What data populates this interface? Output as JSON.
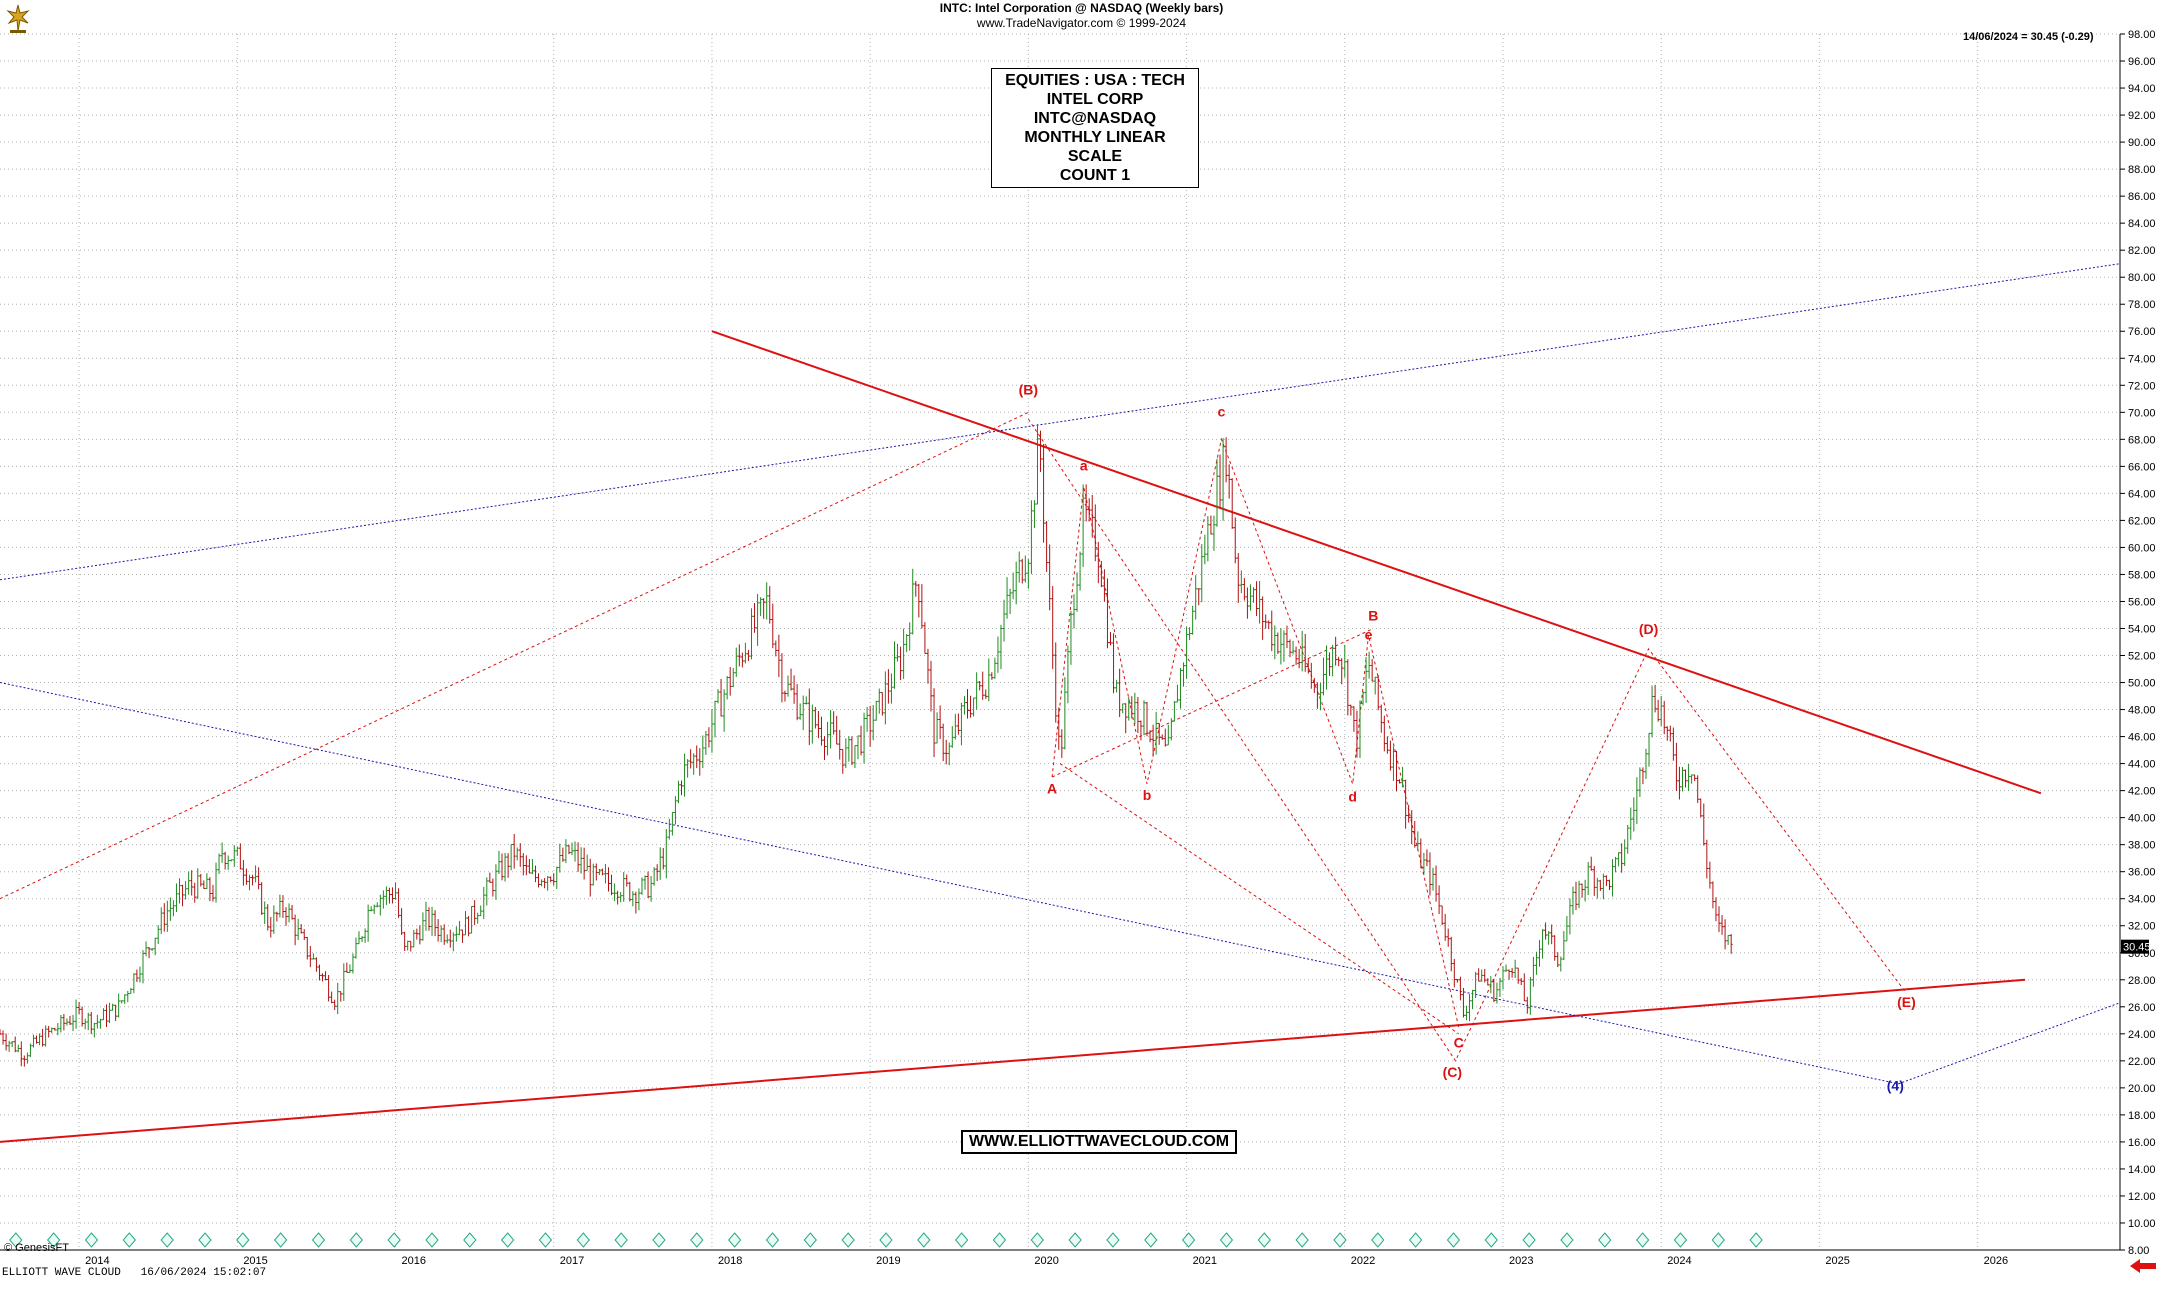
{
  "header": {
    "line1": "INTC:  Intel Corporation @ NASDAQ  (Weekly bars)",
    "line2": "www.TradeNavigator.com © 1999-2024"
  },
  "quote": {
    "text": "14/06/2024 = 30.45 (-0.29)"
  },
  "last_price_label": "30.45",
  "label_box": {
    "lines": [
      "EQUITIES : USA : TECH",
      "INTEL CORP",
      "INTC@NASDAQ",
      "MONTHLY LINEAR SCALE",
      "COUNT 1"
    ]
  },
  "site_label": "WWW.ELLIOTTWAVECLOUD.COM",
  "watermark": "© GenesisFT",
  "footer": {
    "app": "ELLIOTT WAVE CLOUD",
    "timestamp": "16/06/2024 15:02:07"
  },
  "colors": {
    "red": "#dd1111",
    "blue": "#1a1aaa",
    "candle_up": "#1f8a1f",
    "candle_down": "#b01010",
    "grid": "#b0b0b0"
  },
  "chart_data": {
    "type": "line",
    "title": "INTC:  Intel Corporation @ NASDAQ  (Weekly bars)",
    "ylim": [
      8,
      98
    ],
    "xlim": [
      2013.5,
      2026.9
    ],
    "x_tick_labels": [
      "2014",
      "2015",
      "2016",
      "2017",
      "2018",
      "2019",
      "2020",
      "2021",
      "2022",
      "2023",
      "2024",
      "2025",
      "2026"
    ],
    "y_tick_labels": [
      "8.00",
      "10.00",
      "12.00",
      "14.00",
      "16.00",
      "18.00",
      "20.00",
      "22.00",
      "24.00",
      "26.00",
      "28.00",
      "30.00",
      "32.00",
      "34.00",
      "36.00",
      "38.00",
      "40.00",
      "42.00",
      "44.00",
      "46.00",
      "48.00",
      "50.00",
      "52.00",
      "54.00",
      "56.00",
      "58.00",
      "60.00",
      "62.00",
      "64.00",
      "66.00",
      "68.00",
      "70.00",
      "72.00",
      "74.00",
      "76.00",
      "78.00",
      "80.00",
      "82.00",
      "84.00",
      "86.00",
      "88.00",
      "90.00",
      "92.00",
      "94.00",
      "96.00",
      "98.00"
    ],
    "grid": true,
    "price_path": [
      [
        2013.5,
        24.0
      ],
      [
        2013.65,
        22.5
      ],
      [
        2013.8,
        24.0
      ],
      [
        2014.0,
        25.5
      ],
      [
        2014.1,
        24.8
      ],
      [
        2014.25,
        26.0
      ],
      [
        2014.4,
        29.5
      ],
      [
        2014.55,
        33.0
      ],
      [
        2014.7,
        35.0
      ],
      [
        2014.85,
        34.5
      ],
      [
        2014.9,
        37.5
      ],
      [
        2015.0,
        37.0
      ],
      [
        2015.1,
        35.5
      ],
      [
        2015.2,
        32.0
      ],
      [
        2015.3,
        33.5
      ],
      [
        2015.4,
        31.0
      ],
      [
        2015.5,
        29.0
      ],
      [
        2015.62,
        26.5
      ],
      [
        2015.75,
        30.0
      ],
      [
        2015.85,
        34.0
      ],
      [
        2016.0,
        34.5
      ],
      [
        2016.05,
        30.0
      ],
      [
        2016.2,
        32.5
      ],
      [
        2016.3,
        31.5
      ],
      [
        2016.45,
        32.0
      ],
      [
        2016.6,
        35.0
      ],
      [
        2016.75,
        37.5
      ],
      [
        2016.85,
        35.5
      ],
      [
        2017.0,
        36.0
      ],
      [
        2017.1,
        37.5
      ],
      [
        2017.25,
        35.5
      ],
      [
        2017.4,
        35.0
      ],
      [
        2017.5,
        34.5
      ],
      [
        2017.62,
        35.0
      ],
      [
        2017.72,
        38.0
      ],
      [
        2017.8,
        43.0
      ],
      [
        2017.95,
        45.5
      ],
      [
        2018.05,
        48.5
      ],
      [
        2018.2,
        52.5
      ],
      [
        2018.35,
        56.0
      ],
      [
        2018.45,
        50.0
      ],
      [
        2018.6,
        47.5
      ],
      [
        2018.75,
        46.0
      ],
      [
        2018.85,
        44.5
      ],
      [
        2018.95,
        46.0
      ],
      [
        2019.05,
        48.0
      ],
      [
        2019.2,
        52.0
      ],
      [
        2019.3,
        58.0
      ],
      [
        2019.4,
        46.5
      ],
      [
        2019.5,
        45.0
      ],
      [
        2019.6,
        48.0
      ],
      [
        2019.75,
        50.5
      ],
      [
        2019.85,
        55.0
      ],
      [
        2019.95,
        58.5
      ],
      [
        2020.0,
        60.0
      ],
      [
        2020.07,
        68.0
      ],
      [
        2020.12,
        58.0
      ],
      [
        2020.2,
        44.0
      ],
      [
        2020.28,
        56.0
      ],
      [
        2020.35,
        62.5
      ],
      [
        2020.45,
        59.5
      ],
      [
        2020.55,
        49.0
      ],
      [
        2020.7,
        48.0
      ],
      [
        2020.8,
        46.0
      ],
      [
        2020.88,
        44.5
      ],
      [
        2020.95,
        50.0
      ],
      [
        2021.05,
        56.0
      ],
      [
        2021.15,
        62.0
      ],
      [
        2021.25,
        67.0
      ],
      [
        2021.32,
        58.0
      ],
      [
        2021.45,
        55.5
      ],
      [
        2021.55,
        53.5
      ],
      [
        2021.7,
        52.0
      ],
      [
        2021.82,
        49.5
      ],
      [
        2021.95,
        53.0
      ],
      [
        2022.0,
        51.0
      ],
      [
        2022.07,
        45.5
      ],
      [
        2022.15,
        51.5
      ],
      [
        2022.25,
        46.0
      ],
      [
        2022.35,
        43.0
      ],
      [
        2022.45,
        37.5
      ],
      [
        2022.55,
        35.5
      ],
      [
        2022.65,
        31.0
      ],
      [
        2022.75,
        25.5
      ],
      [
        2022.85,
        28.5
      ],
      [
        2022.95,
        27.0
      ],
      [
        2023.05,
        29.5
      ],
      [
        2023.15,
        26.0
      ],
      [
        2023.25,
        32.0
      ],
      [
        2023.35,
        29.5
      ],
      [
        2023.45,
        34.0
      ],
      [
        2023.55,
        36.0
      ],
      [
        2023.65,
        35.0
      ],
      [
        2023.75,
        37.0
      ],
      [
        2023.85,
        42.0
      ],
      [
        2023.95,
        49.0
      ],
      [
        2024.0,
        48.0
      ],
      [
        2024.1,
        43.0
      ],
      [
        2024.2,
        44.0
      ],
      [
        2024.27,
        38.0
      ],
      [
        2024.35,
        32.0
      ],
      [
        2024.45,
        30.45
      ]
    ],
    "annotations": [
      {
        "text": "(B)",
        "x": 2020.0,
        "y": 71.3,
        "color": "red"
      },
      {
        "text": "a",
        "x": 2020.35,
        "y": 65.7,
        "color": "red"
      },
      {
        "text": "c",
        "x": 2021.22,
        "y": 69.7,
        "color": "red"
      },
      {
        "text": "A",
        "x": 2020.15,
        "y": 41.8,
        "color": "red"
      },
      {
        "text": "b",
        "x": 2020.75,
        "y": 41.3,
        "color": "red"
      },
      {
        "text": "B",
        "x": 2022.18,
        "y": 54.6,
        "color": "red"
      },
      {
        "text": "e",
        "x": 2022.15,
        "y": 53.2,
        "color": "red"
      },
      {
        "text": "d",
        "x": 2022.05,
        "y": 41.2,
        "color": "red"
      },
      {
        "text": "(D)",
        "x": 2023.92,
        "y": 53.6,
        "color": "red"
      },
      {
        "text": "C",
        "x": 2022.72,
        "y": 23.0,
        "color": "red"
      },
      {
        "text": "(C)",
        "x": 2022.68,
        "y": 20.8,
        "color": "red"
      },
      {
        "text": "(E)",
        "x": 2025.55,
        "y": 26.0,
        "color": "red"
      },
      {
        "text": "(4)",
        "x": 2025.48,
        "y": 19.8,
        "color": "blue"
      }
    ]
  }
}
